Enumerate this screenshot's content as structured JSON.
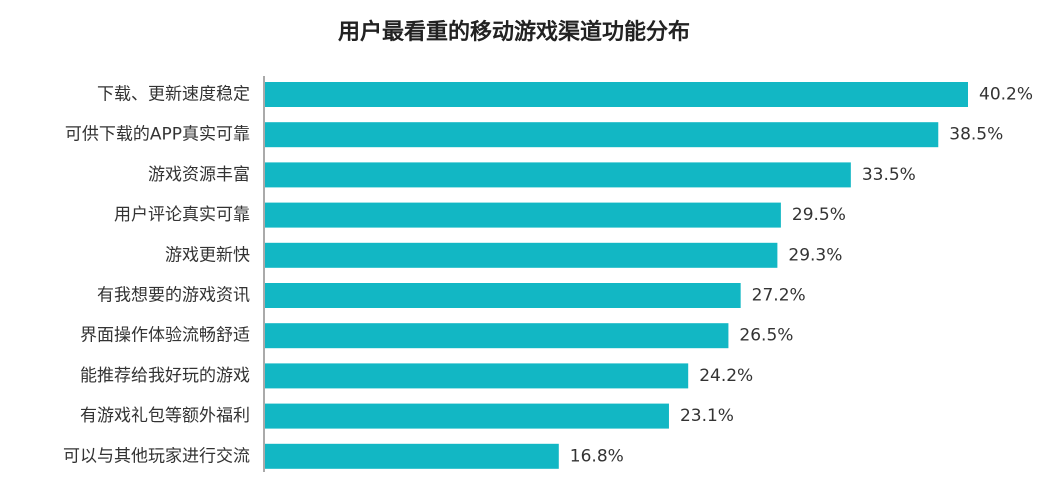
{
  "chart_data": {
    "type": "bar",
    "orientation": "horizontal",
    "title": "用户最看重的移动游戏渠道功能分布",
    "categories": [
      "下载、更新速度稳定",
      "可供下载的APP真实可靠",
      "游戏资源丰富",
      "用户评论真实可靠",
      "游戏更新快",
      "有我想要的游戏资讯",
      "界面操作体验流畅舒适",
      "能推荐给我好玩的游戏",
      "有游戏礼包等额外福利",
      "可以与其他玩家进行交流"
    ],
    "values": [
      40.2,
      38.5,
      33.5,
      29.5,
      29.3,
      27.2,
      26.5,
      24.2,
      23.1,
      16.8
    ],
    "value_labels": [
      "40.2%",
      "38.5%",
      "33.5%",
      "29.5%",
      "29.3%",
      "27.2%",
      "26.5%",
      "24.2%",
      "23.1%",
      "16.8%"
    ],
    "unit": "%",
    "xlabel": "",
    "ylabel": "",
    "xlim": [
      0,
      40.2
    ],
    "grid": false,
    "legend": "none",
    "bar_color": "#12B7C4",
    "axis_color": "#555555"
  }
}
